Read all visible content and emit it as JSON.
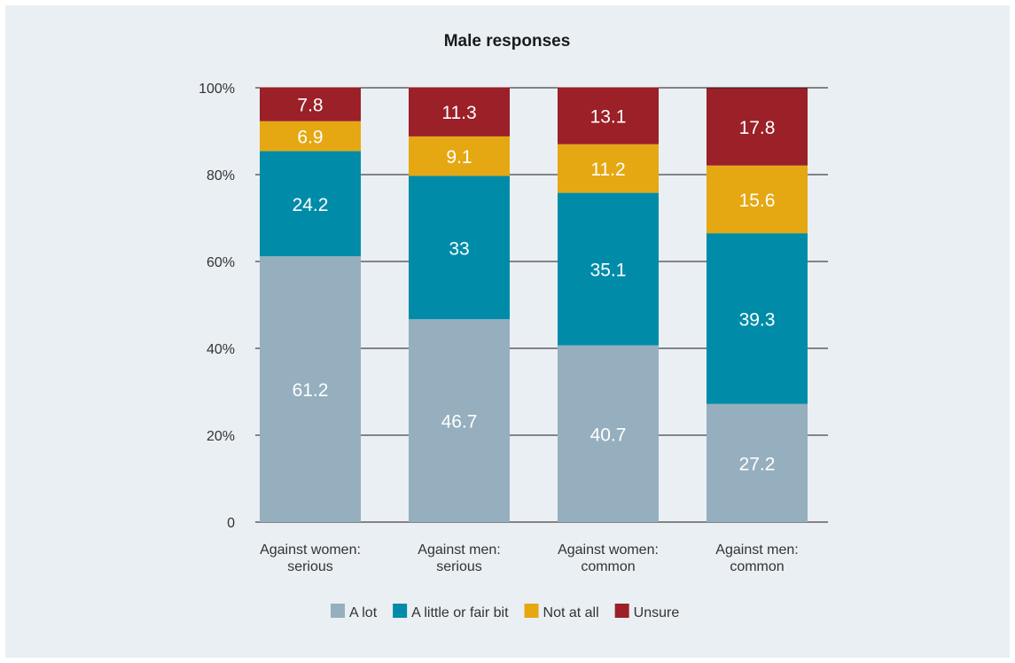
{
  "chart_data": {
    "type": "bar",
    "stacked": true,
    "title": "Male responses",
    "categories": [
      [
        "Against women:",
        "serious"
      ],
      [
        "Against men:",
        "serious"
      ],
      [
        "Against women:",
        "common"
      ],
      [
        "Against men:",
        "common"
      ]
    ],
    "series": [
      {
        "name": "A lot",
        "color": "#95afbe",
        "label_color": "#ffffff",
        "values": [
          61.2,
          46.7,
          40.7,
          27.2
        ]
      },
      {
        "name": "A little or fair bit",
        "color": "#008ca8",
        "label_color": "#ffffff",
        "values": [
          24.2,
          33,
          35.1,
          39.3
        ]
      },
      {
        "name": "Not at all",
        "color": "#e5a812",
        "label_color": "#ffffff",
        "values": [
          6.9,
          9.1,
          11.2,
          15.6
        ]
      },
      {
        "name": "Unsure",
        "color": "#9b2028",
        "label_color": "#ffffff",
        "values": [
          7.8,
          11.3,
          13.1,
          17.8
        ]
      }
    ],
    "yticks": [
      {
        "value": 0,
        "label": "0"
      },
      {
        "value": 20,
        "label": "20%"
      },
      {
        "value": 40,
        "label": "40%"
      },
      {
        "value": 60,
        "label": "60%"
      },
      {
        "value": 80,
        "label": "80%"
      },
      {
        "value": 100,
        "label": "100%"
      }
    ],
    "ylim": [
      0,
      100
    ],
    "xlabel": "",
    "ylabel": "",
    "grid": true,
    "legend_position": "bottom"
  }
}
